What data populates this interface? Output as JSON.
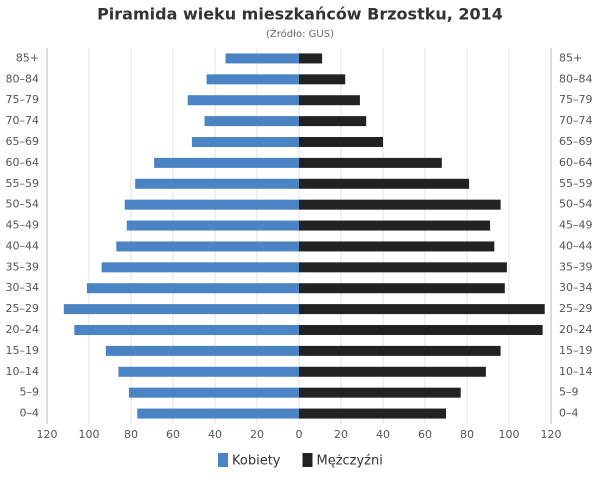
{
  "chart_data": {
    "type": "pyramid",
    "title": "Piramida wieku mieszkańców Brzostku, 2014",
    "subtitle": "(Źródło: GUS)",
    "categories": [
      "0–4",
      "5–9",
      "10–14",
      "15–19",
      "20–24",
      "25–29",
      "30–34",
      "35–39",
      "40–44",
      "45–49",
      "50–54",
      "55–59",
      "60–64",
      "65–69",
      "70–74",
      "75–79",
      "80–84",
      "85+"
    ],
    "series": [
      {
        "name": "Kobiety",
        "color": "#4a84c4",
        "values": [
          -77,
          -81,
          -86,
          -92,
          -107,
          -112,
          -101,
          -94,
          -87,
          -82,
          -83,
          -78,
          -69,
          -51,
          -45,
          -53,
          -44,
          -35
        ]
      },
      {
        "name": "Mężczyźni",
        "color": "#222222",
        "values": [
          70,
          77,
          89,
          96,
          116,
          117,
          98,
          99,
          93,
          91,
          96,
          81,
          68,
          40,
          32,
          29,
          22,
          11
        ]
      }
    ],
    "xlim": [
      -120,
      120
    ],
    "xticks": [
      {
        "value": -120,
        "label": "120"
      },
      {
        "value": -100,
        "label": "100"
      },
      {
        "value": -80,
        "label": "80"
      },
      {
        "value": -60,
        "label": "60"
      },
      {
        "value": -40,
        "label": "40"
      },
      {
        "value": -20,
        "label": "20"
      },
      0,
      20,
      40,
      60,
      80,
      100,
      120
    ],
    "grid": true
  }
}
